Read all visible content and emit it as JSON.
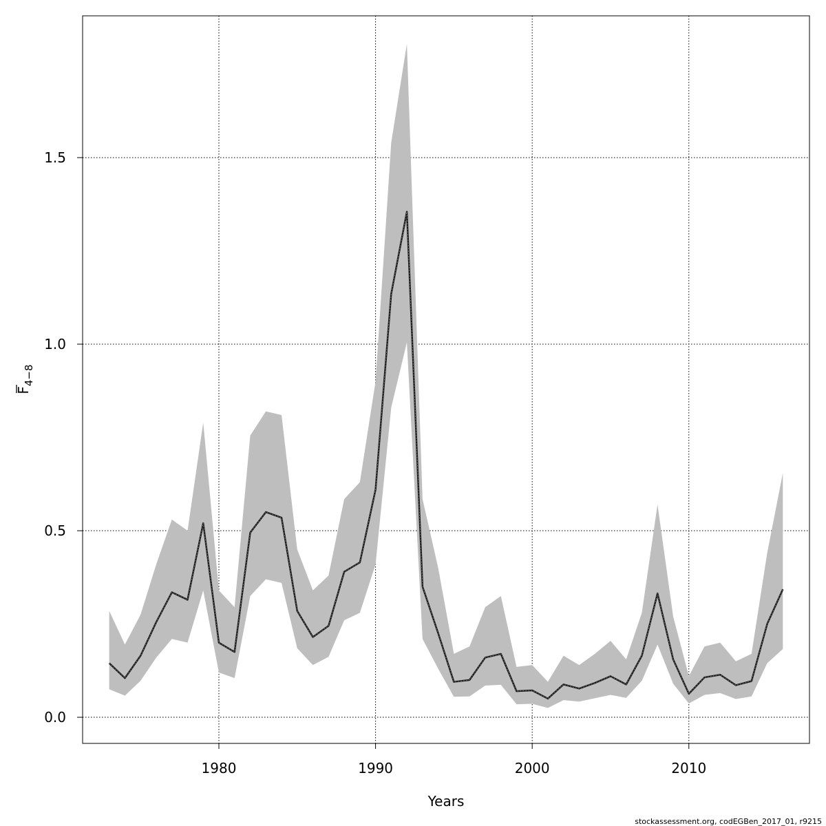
{
  "chart_data": {
    "type": "area",
    "title": "",
    "xlabel": "Years",
    "ylabel": {
      "main": "F",
      "sub": "4−8"
    },
    "xlim": [
      1971.3,
      2017.7
    ],
    "ylim": [
      -0.07,
      1.88
    ],
    "xticks": [
      1980,
      1990,
      2000,
      2010
    ],
    "xtick_labels": [
      "1980",
      "1990",
      "2000",
      "2010"
    ],
    "yticks": [
      0.0,
      0.5,
      1.0,
      1.5
    ],
    "ytick_labels": [
      "0.0",
      "0.5",
      "1.0",
      "1.5"
    ],
    "grid": true,
    "x": [
      1973,
      1974,
      1975,
      1976,
      1977,
      1978,
      1979,
      1980,
      1981,
      1982,
      1983,
      1984,
      1985,
      1986,
      1987,
      1988,
      1989,
      1990,
      1991,
      1992,
      1993,
      1994,
      1995,
      1996,
      1997,
      1998,
      1999,
      2000,
      2001,
      2002,
      2003,
      2004,
      2005,
      2006,
      2007,
      2008,
      2009,
      2010,
      2011,
      2012,
      2013,
      2014,
      2015,
      2016
    ],
    "series": [
      {
        "values": [
          0.145,
          0.105,
          0.165,
          0.255,
          0.335,
          0.315,
          0.52,
          0.2,
          0.175,
          0.495,
          0.55,
          0.535,
          0.285,
          0.215,
          0.245,
          0.39,
          0.415,
          0.61,
          1.135,
          1.355,
          0.35,
          0.225,
          0.095,
          0.1,
          0.16,
          0.17,
          0.07,
          0.072,
          0.05,
          0.088,
          0.077,
          0.092,
          0.11,
          0.088,
          0.165,
          0.332,
          0.155,
          0.063,
          0.107,
          0.114,
          0.086,
          0.097,
          0.25,
          0.343
        ],
        "lower": [
          0.075,
          0.058,
          0.098,
          0.16,
          0.21,
          0.2,
          0.34,
          0.12,
          0.105,
          0.325,
          0.37,
          0.36,
          0.185,
          0.14,
          0.162,
          0.26,
          0.28,
          0.41,
          0.83,
          1.005,
          0.21,
          0.13,
          0.055,
          0.056,
          0.085,
          0.087,
          0.035,
          0.036,
          0.025,
          0.046,
          0.042,
          0.051,
          0.06,
          0.052,
          0.098,
          0.195,
          0.09,
          0.037,
          0.06,
          0.065,
          0.049,
          0.056,
          0.145,
          0.183
        ],
        "upper": [
          0.285,
          0.195,
          0.275,
          0.41,
          0.53,
          0.5,
          0.79,
          0.34,
          0.295,
          0.755,
          0.82,
          0.81,
          0.45,
          0.34,
          0.38,
          0.585,
          0.63,
          0.9,
          1.54,
          1.805,
          0.585,
          0.4,
          0.17,
          0.19,
          0.295,
          0.325,
          0.135,
          0.14,
          0.095,
          0.165,
          0.14,
          0.17,
          0.205,
          0.155,
          0.28,
          0.57,
          0.27,
          0.11,
          0.19,
          0.2,
          0.15,
          0.17,
          0.44,
          0.655
        ]
      }
    ]
  },
  "credit": "stockassessment.org, codEGBen_2017_01, r9215"
}
